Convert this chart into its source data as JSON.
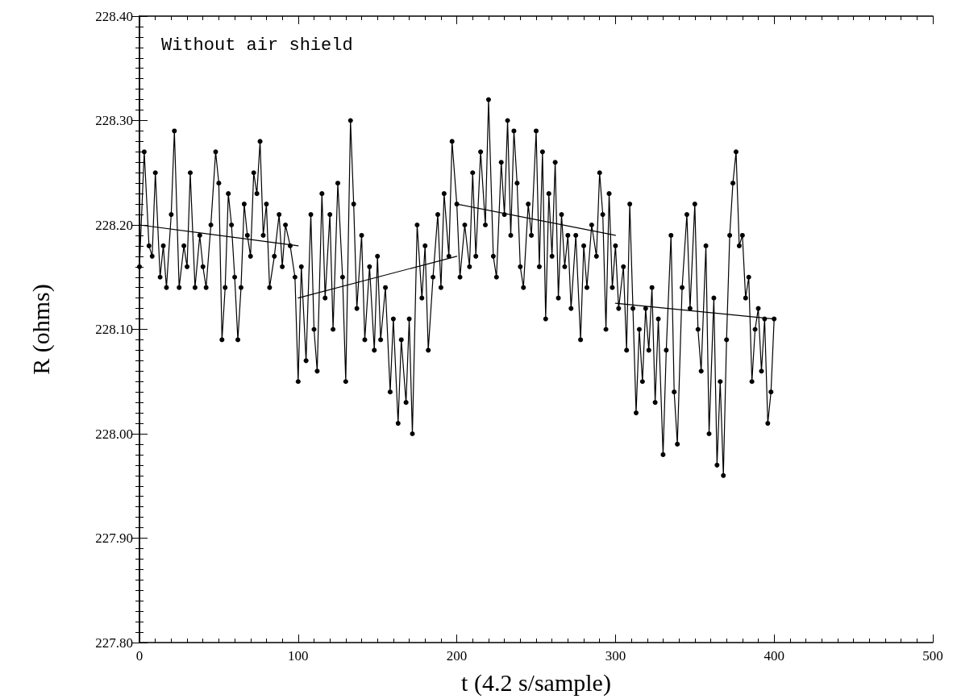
{
  "chart_data": {
    "type": "line",
    "xlabel": "t (4.2 s/sample)",
    "ylabel": "R (ohms)",
    "annotations": [
      "Without air shield"
    ],
    "xlim": [
      0,
      500
    ],
    "xticks": [
      0,
      100,
      200,
      300,
      400,
      500
    ],
    "ylim": [
      227.8,
      228.4
    ],
    "yticks": [
      {
        "value": 227.8,
        "label": "227.80"
      },
      {
        "value": 227.9,
        "label": "227.90"
      },
      {
        "value": 228.0,
        "label": "228.00"
      },
      {
        "value": 228.1,
        "label": "228.10"
      },
      {
        "value": 228.2,
        "label": "228.20"
      },
      {
        "value": 228.3,
        "label": "228.30"
      },
      {
        "value": 228.4,
        "label": "228.40"
      }
    ],
    "grid": false,
    "line_style": "solid",
    "series": [
      {
        "color": "#000000",
        "marker": "circle",
        "x": [
          0,
          3,
          6,
          8,
          10,
          13,
          15,
          17,
          20,
          22,
          25,
          28,
          30,
          32,
          35,
          38,
          40,
          42,
          45,
          48,
          50,
          52,
          54,
          56,
          58,
          60,
          62,
          64,
          66,
          68,
          70,
          72,
          74,
          76,
          78,
          80,
          82,
          85,
          88,
          90,
          92,
          95,
          98,
          100,
          102,
          105,
          108,
          110,
          112,
          115,
          117,
          120,
          122,
          125,
          128,
          130,
          133,
          135,
          137,
          140,
          142,
          145,
          148,
          150,
          152,
          155,
          158,
          160,
          163,
          165,
          168,
          170,
          172,
          175,
          178,
          180,
          182,
          185,
          188,
          190,
          192,
          195,
          197,
          200,
          202,
          205,
          208,
          210,
          212,
          215,
          218,
          220,
          223,
          225,
          228,
          230,
          232,
          234,
          236,
          238,
          240,
          242,
          245,
          247,
          250,
          252,
          254,
          256,
          258,
          260,
          262,
          264,
          266,
          268,
          270,
          272,
          275,
          278,
          280,
          282,
          285,
          288,
          290,
          292,
          294,
          296,
          298,
          300,
          302,
          305,
          307,
          309,
          311,
          313,
          315,
          317,
          319,
          321,
          323,
          325,
          327,
          330,
          332,
          335,
          337,
          339,
          342,
          345,
          347,
          350,
          352,
          354,
          357,
          359,
          362,
          364,
          366,
          368,
          370,
          372,
          374,
          376,
          378,
          380,
          382,
          384,
          386,
          388,
          390,
          392,
          394,
          396,
          398,
          400
        ],
        "values": [
          228.16,
          228.27,
          228.18,
          228.17,
          228.25,
          228.15,
          228.18,
          228.14,
          228.21,
          228.29,
          228.14,
          228.18,
          228.16,
          228.25,
          228.14,
          228.19,
          228.16,
          228.14,
          228.2,
          228.27,
          228.24,
          228.09,
          228.14,
          228.23,
          228.2,
          228.15,
          228.09,
          228.14,
          228.22,
          228.19,
          228.17,
          228.25,
          228.23,
          228.28,
          228.19,
          228.22,
          228.14,
          228.17,
          228.21,
          228.16,
          228.2,
          228.18,
          228.15,
          228.05,
          228.16,
          228.07,
          228.21,
          228.1,
          228.06,
          228.23,
          228.13,
          228.21,
          228.1,
          228.24,
          228.15,
          228.05,
          228.3,
          228.22,
          228.12,
          228.19,
          228.09,
          228.16,
          228.08,
          228.17,
          228.09,
          228.14,
          228.04,
          228.11,
          228.01,
          228.09,
          228.03,
          228.11,
          228.0,
          228.2,
          228.13,
          228.18,
          228.08,
          228.15,
          228.21,
          228.14,
          228.23,
          228.17,
          228.28,
          228.22,
          228.15,
          228.2,
          228.16,
          228.25,
          228.17,
          228.27,
          228.2,
          228.32,
          228.17,
          228.15,
          228.26,
          228.21,
          228.3,
          228.19,
          228.29,
          228.24,
          228.16,
          228.14,
          228.22,
          228.19,
          228.29,
          228.16,
          228.27,
          228.11,
          228.23,
          228.17,
          228.26,
          228.13,
          228.21,
          228.16,
          228.19,
          228.12,
          228.19,
          228.09,
          228.18,
          228.14,
          228.2,
          228.17,
          228.25,
          228.21,
          228.1,
          228.23,
          228.14,
          228.18,
          228.12,
          228.16,
          228.08,
          228.22,
          228.12,
          228.02,
          228.1,
          228.05,
          228.12,
          228.08,
          228.14,
          228.03,
          228.11,
          227.98,
          228.08,
          228.19,
          228.04,
          227.99,
          228.14,
          228.21,
          228.12,
          228.22,
          228.1,
          228.06,
          228.18,
          228.0,
          228.13,
          227.97,
          228.05,
          227.96,
          228.09,
          228.19,
          228.24,
          228.27,
          228.18,
          228.19,
          228.13,
          228.15,
          228.05,
          228.1,
          228.12,
          228.06,
          228.11,
          228.01,
          228.04,
          228.11
        ]
      },
      {
        "type": "line",
        "color": "#000000",
        "marker": "none",
        "x": [
          0,
          100
        ],
        "values": [
          228.2,
          228.18
        ]
      },
      {
        "type": "line",
        "color": "#000000",
        "marker": "none",
        "x": [
          100,
          200
        ],
        "values": [
          228.13,
          228.17
        ]
      },
      {
        "type": "line",
        "color": "#000000",
        "marker": "none",
        "x": [
          200,
          300
        ],
        "values": [
          228.22,
          228.19
        ]
      },
      {
        "type": "line",
        "color": "#000000",
        "marker": "none",
        "x": [
          300,
          400
        ],
        "values": [
          228.125,
          228.11
        ]
      }
    ]
  }
}
